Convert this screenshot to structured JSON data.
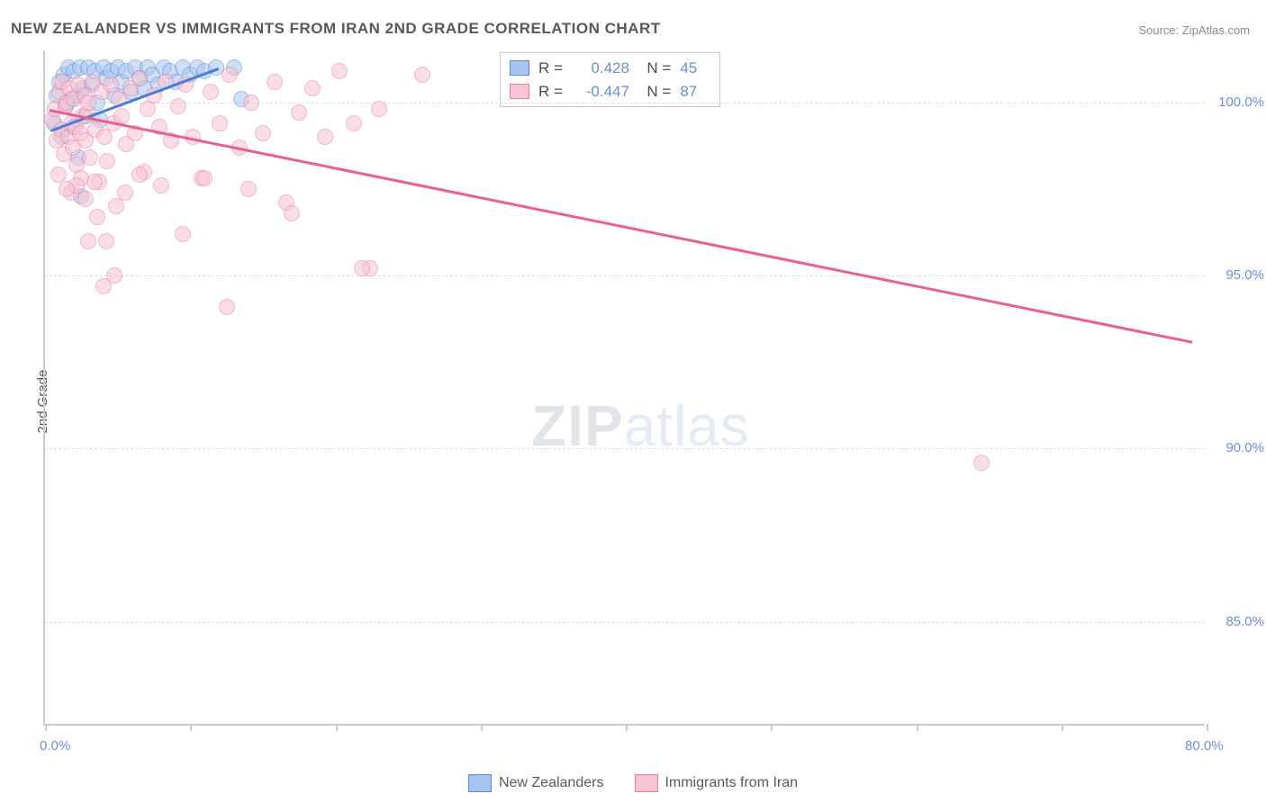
{
  "title": "NEW ZEALANDER VS IMMIGRANTS FROM IRAN 2ND GRADE CORRELATION CHART",
  "source": "Source: ZipAtlas.com",
  "y_axis_title": "2nd Grade",
  "watermark": {
    "part1": "ZIP",
    "part2": "atlas"
  },
  "chart": {
    "type": "scatter",
    "xlim": [
      0,
      80
    ],
    "ylim": [
      82,
      101.5
    ],
    "x_tick_positions": [
      0,
      10,
      20,
      30,
      40,
      50,
      60,
      70,
      80
    ],
    "x_label_min": "0.0%",
    "x_label_max": "80.0%",
    "y_ticks": [
      {
        "v": 85,
        "label": "85.0%"
      },
      {
        "v": 90,
        "label": "90.0%"
      },
      {
        "v": 95,
        "label": "95.0%"
      },
      {
        "v": 100,
        "label": "100.0%"
      }
    ],
    "grid_color": "#dcdde0",
    "axis_color": "#c9cbcd",
    "background_color": "#ffffff",
    "point_radius": 9,
    "point_opacity": 0.55,
    "series": [
      {
        "name": "New Zealanders",
        "color_fill": "#a9c5ef",
        "color_stroke": "#5a8ad4",
        "R": "0.428",
        "N": "45",
        "trend": {
          "x1": 0.4,
          "y1": 99.2,
          "x2": 12.0,
          "y2": 101.0,
          "color": "#4d7fd1"
        },
        "points": [
          [
            0.6,
            99.4
          ],
          [
            0.8,
            100.2
          ],
          [
            1.0,
            100.6
          ],
          [
            1.1,
            99.0
          ],
          [
            1.3,
            100.8
          ],
          [
            1.4,
            99.9
          ],
          [
            1.6,
            101.0
          ],
          [
            1.8,
            100.1
          ],
          [
            1.9,
            99.3
          ],
          [
            2.0,
            100.9
          ],
          [
            2.2,
            100.2
          ],
          [
            2.4,
            101.0
          ],
          [
            2.6,
            100.4
          ],
          [
            2.8,
            99.6
          ],
          [
            3.0,
            101.0
          ],
          [
            3.2,
            100.5
          ],
          [
            3.4,
            100.9
          ],
          [
            3.6,
            100.0
          ],
          [
            3.8,
            99.5
          ],
          [
            4.0,
            101.0
          ],
          [
            4.2,
            100.7
          ],
          [
            4.5,
            100.9
          ],
          [
            4.8,
            100.2
          ],
          [
            5.0,
            101.0
          ],
          [
            5.3,
            100.6
          ],
          [
            5.6,
            100.9
          ],
          [
            5.9,
            100.3
          ],
          [
            6.2,
            101.0
          ],
          [
            6.5,
            100.7
          ],
          [
            6.8,
            100.4
          ],
          [
            7.1,
            101.0
          ],
          [
            7.4,
            100.8
          ],
          [
            7.8,
            100.5
          ],
          [
            8.2,
            101.0
          ],
          [
            8.6,
            100.9
          ],
          [
            9.0,
            100.6
          ],
          [
            9.5,
            101.0
          ],
          [
            10.0,
            100.8
          ],
          [
            10.5,
            101.0
          ],
          [
            11.0,
            100.9
          ],
          [
            11.8,
            101.0
          ],
          [
            13.0,
            101.0
          ],
          [
            13.5,
            100.1
          ],
          [
            2.5,
            97.3
          ],
          [
            2.3,
            98.4
          ]
        ]
      },
      {
        "name": "Immigrants from Iran",
        "color_fill": "#f7c4d2",
        "color_stroke": "#ec7ba1",
        "R": "-0.447",
        "N": "87",
        "trend": {
          "x1": 0.3,
          "y1": 99.8,
          "x2": 79.0,
          "y2": 93.1,
          "color": "#ea5f8e"
        },
        "points": [
          [
            0.5,
            99.5
          ],
          [
            0.7,
            99.8
          ],
          [
            0.8,
            98.9
          ],
          [
            1.0,
            100.3
          ],
          [
            1.1,
            99.2
          ],
          [
            1.2,
            100.6
          ],
          [
            1.3,
            98.5
          ],
          [
            1.4,
            99.9
          ],
          [
            1.5,
            100.0
          ],
          [
            1.6,
            99.0
          ],
          [
            1.7,
            100.4
          ],
          [
            1.8,
            99.4
          ],
          [
            1.9,
            98.7
          ],
          [
            2.0,
            100.1
          ],
          [
            2.1,
            99.3
          ],
          [
            2.2,
            98.2
          ],
          [
            2.3,
            100.5
          ],
          [
            2.4,
            99.1
          ],
          [
            2.5,
            97.8
          ],
          [
            2.6,
            99.6
          ],
          [
            2.7,
            100.2
          ],
          [
            2.8,
            98.9
          ],
          [
            2.9,
            99.7
          ],
          [
            3.0,
            100.0
          ],
          [
            3.1,
            98.4
          ],
          [
            3.3,
            100.6
          ],
          [
            3.5,
            99.2
          ],
          [
            3.7,
            97.7
          ],
          [
            3.9,
            100.3
          ],
          [
            4.1,
            99.0
          ],
          [
            4.3,
            98.3
          ],
          [
            4.5,
            100.5
          ],
          [
            4.7,
            99.4
          ],
          [
            4.9,
            97.0
          ],
          [
            5.1,
            100.1
          ],
          [
            5.3,
            99.6
          ],
          [
            5.6,
            98.8
          ],
          [
            5.9,
            100.4
          ],
          [
            6.2,
            99.1
          ],
          [
            6.5,
            100.7
          ],
          [
            6.8,
            98.0
          ],
          [
            7.1,
            99.8
          ],
          [
            7.5,
            100.2
          ],
          [
            7.9,
            99.3
          ],
          [
            8.3,
            100.6
          ],
          [
            8.7,
            98.9
          ],
          [
            9.2,
            99.9
          ],
          [
            9.7,
            100.5
          ],
          [
            10.2,
            99.0
          ],
          [
            10.8,
            97.8
          ],
          [
            11.4,
            100.3
          ],
          [
            12.0,
            99.4
          ],
          [
            12.7,
            100.8
          ],
          [
            13.4,
            98.7
          ],
          [
            14.2,
            100.0
          ],
          [
            15.0,
            99.1
          ],
          [
            15.8,
            100.6
          ],
          [
            16.6,
            97.1
          ],
          [
            17.5,
            99.7
          ],
          [
            18.4,
            100.4
          ],
          [
            19.3,
            99.0
          ],
          [
            20.3,
            100.9
          ],
          [
            21.3,
            99.4
          ],
          [
            22.4,
            95.2
          ],
          [
            26.0,
            100.8
          ],
          [
            1.8,
            97.4
          ],
          [
            2.2,
            97.6
          ],
          [
            3.4,
            97.7
          ],
          [
            4.2,
            96.0
          ],
          [
            3.0,
            96.0
          ],
          [
            4.8,
            95.0
          ],
          [
            9.5,
            96.2
          ],
          [
            12.5,
            94.1
          ],
          [
            4.0,
            94.7
          ],
          [
            0.9,
            97.9
          ],
          [
            1.5,
            97.5
          ],
          [
            2.8,
            97.2
          ],
          [
            3.6,
            96.7
          ],
          [
            5.5,
            97.4
          ],
          [
            6.5,
            97.9
          ],
          [
            8.0,
            97.6
          ],
          [
            11.0,
            97.8
          ],
          [
            14.0,
            97.5
          ],
          [
            17.0,
            96.8
          ],
          [
            64.5,
            89.6
          ],
          [
            21.8,
            95.2
          ],
          [
            23.0,
            99.8
          ]
        ]
      }
    ]
  },
  "legend": {
    "items": [
      {
        "label": "New Zealanders",
        "fill": "#a9c5ef",
        "stroke": "#5a8ad4"
      },
      {
        "label": "Immigrants from Iran",
        "fill": "#f7c4d2",
        "stroke": "#ec7ba1"
      }
    ]
  }
}
